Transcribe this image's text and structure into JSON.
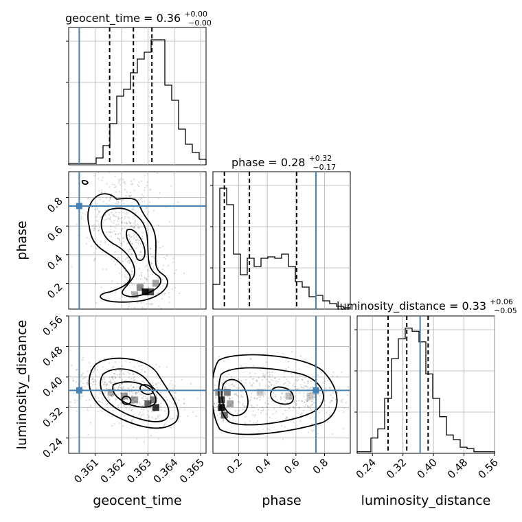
{
  "chart_data": {
    "type": "corner",
    "parameters": [
      "geocent_time",
      "phase",
      "luminosity_distance"
    ],
    "ranges": {
      "geocent_time": [
        0.36,
        0.3652
      ],
      "phase": [
        0.02,
        0.98
      ],
      "luminosity_distance": [
        0.2,
        0.56
      ]
    },
    "truths": {
      "geocent_time": 0.3604,
      "phase": 0.74,
      "luminosity_distance": 0.365
    },
    "ticks": {
      "geocent_time": [
        "0.361",
        "0.362",
        "0.363",
        "0.364",
        "0.365"
      ],
      "phase_y": [
        "0.2",
        "0.4",
        "0.6",
        "0.8"
      ],
      "phase_x": [
        "0.2",
        "0.4",
        "0.6",
        "0.8"
      ],
      "luminosity_distance_y": [
        "0.24",
        "0.32",
        "0.40",
        "0.48",
        "0.56"
      ],
      "luminosity_distance_x": [
        "0.24",
        "0.32",
        "0.40",
        "0.48",
        "0.56"
      ]
    },
    "titles": {
      "geocent_time": {
        "main": "geocent_time = 0.36",
        "sup": "+0.00",
        "sub": "−0.00"
      },
      "phase": {
        "main": "phase = 0.28",
        "sup": "+0.32",
        "sub": "−0.17"
      },
      "luminosity_distance": {
        "main": "luminosity_distance = 0.33",
        "sup": "+0.06",
        "sub": "−0.05"
      }
    },
    "axis_labels": {
      "geocent_time": "geocent_time",
      "phase": "phase",
      "luminosity_distance": "luminosity_distance"
    },
    "histograms": {
      "geocent_time": {
        "bin_start": 0.36,
        "bin_width": 0.00026,
        "counts": [
          1,
          1,
          1,
          1,
          5,
          14,
          30,
          50,
          55,
          67,
          77,
          82,
          91,
          91,
          58,
          47,
          26,
          15,
          9,
          4
        ],
        "quantiles": [
          0.36155,
          0.36245,
          0.36315
        ]
      },
      "phase": {
        "bin_start": 0.02,
        "bin_width": 0.048,
        "counts": [
          18,
          88,
          76,
          40,
          25,
          37,
          31,
          37,
          38,
          37,
          40,
          31,
          20,
          16,
          9,
          10,
          6,
          4,
          2,
          1
        ],
        "quantiles": [
          0.1,
          0.275,
          0.605
        ]
      },
      "luminosity_distance": {
        "bin_start": 0.2,
        "bin_width": 0.018,
        "counts": [
          1,
          1,
          10,
          16,
          36,
          62,
          75,
          82,
          80,
          73,
          52,
          36,
          24,
          12,
          9,
          4,
          3,
          1,
          1,
          1
        ],
        "quantiles": [
          0.281,
          0.33,
          0.386
        ]
      }
    },
    "ylims": {
      "geocent_time": 100,
      "phase": 100,
      "luminosity_distance": 90
    }
  }
}
